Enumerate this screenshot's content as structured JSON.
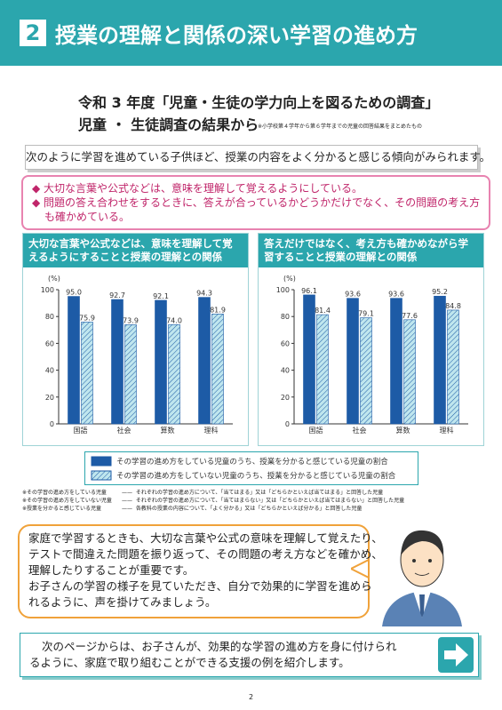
{
  "header": {
    "number": "2",
    "title": "授業の理解と関係の深い学習の進め方"
  },
  "survey": {
    "title": "令和 3 年度「児童・生徒の学力向上を図るための調査」",
    "subtitle": "児童 ・ 生徒調査の結果から",
    "note": "※小学校第４学年から第６学年までの児童の回答結果をまとめたもの"
  },
  "lead": "次のように学習を進めている子供ほど、授業の内容をよく分かると感じる傾向がみられます。",
  "points": [
    "大切な言葉や公式などは、意味を理解して覚えるようにしている。",
    "問題の答え合わせをするときに、答えが合っているかどうかだけでなく、その問題の考え方も確かめている。"
  ],
  "chart_data": [
    {
      "type": "bar",
      "title": "大切な言葉や公式などは、意味を理解して覚えるようにすることと授業の理解との関係",
      "y_label": "(%)",
      "categories": [
        "国語",
        "社会",
        "算数",
        "理科"
      ],
      "series": [
        {
          "name": "その学習の進め方をしている児童のうち、授業を分かると感じている児童の割合",
          "color": "#1d5ba6",
          "values": [
            95.0,
            92.7,
            92.1,
            94.3
          ],
          "value_labels": [
            "95.0",
            "92.7",
            "92.1",
            "94.3"
          ]
        },
        {
          "name": "その学習の進め方をしていない児童のうち、授業を分かると感じている児童の割合",
          "color": "#bfe6ee",
          "values": [
            75.9,
            73.9,
            74.0,
            81.9
          ],
          "value_labels": [
            "75.9",
            "73.9",
            "74.0",
            "81.9"
          ]
        }
      ],
      "ylim": [
        0,
        100
      ],
      "yticks": [
        0,
        20,
        40,
        60,
        80,
        100
      ]
    },
    {
      "type": "bar",
      "title": "答えだけではなく、考え方も確かめながら学習することと授業の理解との関係",
      "y_label": "(%)",
      "categories": [
        "国語",
        "社会",
        "算数",
        "理科"
      ],
      "series": [
        {
          "color": "#1d5ba6",
          "values": [
            96.1,
            93.6,
            93.6,
            95.2
          ],
          "value_labels": [
            "96.1",
            "93.6",
            "93.6",
            "95.2"
          ]
        },
        {
          "color": "#bfe6ee",
          "values": [
            81.4,
            79.1,
            77.6,
            84.8
          ],
          "value_labels": [
            "81.4",
            "79.1",
            "77.6",
            "84.8"
          ]
        }
      ],
      "ylim": [
        0,
        100
      ],
      "yticks": [
        0,
        20,
        40,
        60,
        80,
        100
      ]
    }
  ],
  "notes": [
    {
      "term": "※その学習の進め方をしている児童",
      "text": "それぞれの学習の進め方について、「当てはまる」又は「どちらかといえば当てはまる」と回答した児童"
    },
    {
      "term": "※その学習の進め方をしていない児童",
      "text": "それぞれの学習の進め方について、「当てはまらない」又は「どちらかといえば当てはまらない」と回答した児童"
    },
    {
      "term": "※授業を分かると感じている児童",
      "text": "各教科の授業の内容について、「よく分かる」又は「どちらかといえば分かる」と回答した児童"
    }
  ],
  "advice": [
    "家庭で学習するときも、大切な言葉や公式の意味を理解して覚えたり、",
    "テストで間違えた問題を振り返って、その問題の考え方などを確かめ、",
    "理解したりすることが重要です。",
    "お子さんの学習の様子を見ていただき、自分で効果的に学習を進めら",
    "れるように、声を掛けてみましょう。"
  ],
  "next": [
    "次のページからは、お子さんが、効果的な学習の進め方を身に付けられ",
    "るように、家庭で取り組むことができる支援の例を紹介します。"
  ],
  "page_number": "2"
}
